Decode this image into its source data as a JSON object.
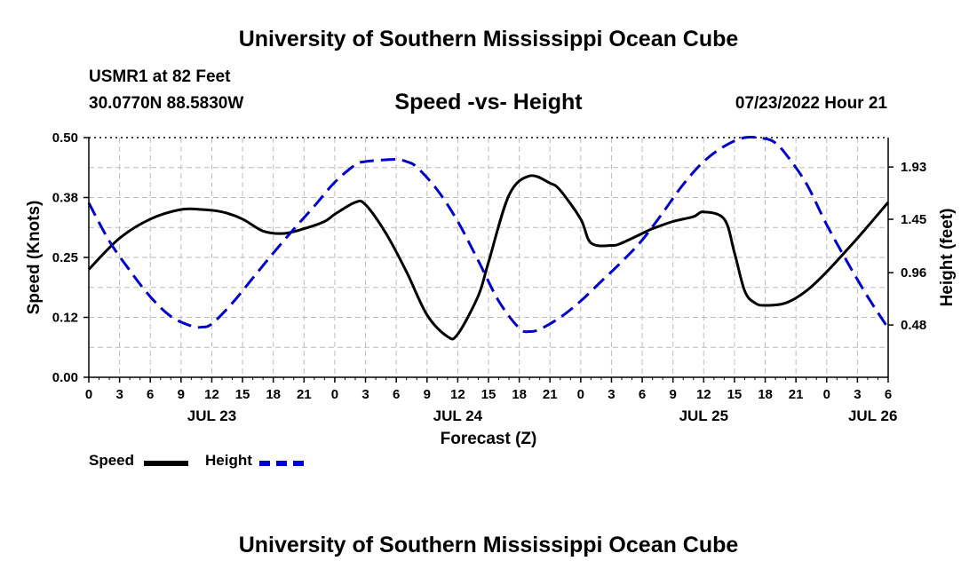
{
  "page": {
    "top_title": "University of Southern Mississippi Ocean Cube",
    "station": "USMR1 at 82 Feet",
    "location": "30.0770N  88.5830W",
    "chart_title": "Speed -vs- Height",
    "timestamp": "07/23/2022 Hour 21",
    "bottom_title": "University of Southern Mississippi Ocean Cube"
  },
  "colors": {
    "speed": "#000000",
    "height": "#0000cc",
    "grid": "#bbbbbb"
  },
  "chart_data": {
    "type": "line",
    "title": "Speed -vs- Height",
    "xlabel": "Forecast (Z)",
    "ylabel": "Speed (Knots)",
    "y2label": "Height (feet)",
    "x_unit": "hours since 07/23 00Z",
    "xlim": [
      0,
      78
    ],
    "ylim": [
      0,
      0.5
    ],
    "y2lim": [
      0,
      2.2
    ],
    "x_tick_labels": [
      "0",
      "3",
      "6",
      "9",
      "12",
      "15",
      "18",
      "21",
      "0",
      "3",
      "6",
      "9",
      "12",
      "15",
      "18",
      "21",
      "0",
      "3",
      "6",
      "9",
      "12",
      "15",
      "18",
      "21",
      "0",
      "3",
      "6"
    ],
    "date_labels": [
      {
        "label": "JUL 23",
        "hour": 12
      },
      {
        "label": "JUL 24",
        "hour": 36
      },
      {
        "label": "JUL 25",
        "hour": 60
      },
      {
        "label": "JUL 26",
        "hour": 76.5
      }
    ],
    "y_ticks": [
      "0.00",
      "0.12",
      "0.25",
      "0.38",
      "0.50"
    ],
    "y_tick_values": [
      0,
      0.125,
      0.25,
      0.375,
      0.5
    ],
    "y2_ticks": [
      "0.48",
      "0.96",
      "1.45",
      "1.93"
    ],
    "y2_tick_values": [
      0.48,
      0.96,
      1.45,
      1.93
    ],
    "series": [
      {
        "name": "Speed",
        "axis": "left",
        "x": [
          0,
          3,
          6,
          9,
          11,
          13,
          15,
          17,
          19,
          21,
          23,
          24,
          26,
          27,
          29,
          31,
          33,
          35,
          36,
          38,
          39,
          41,
          43,
          45,
          46,
          48,
          49,
          51,
          52,
          54,
          55,
          57,
          59,
          60,
          62,
          63,
          64,
          65,
          66,
          68,
          70,
          72,
          75,
          78
        ],
        "values": [
          0.225,
          0.29,
          0.33,
          0.35,
          0.35,
          0.345,
          0.33,
          0.305,
          0.3,
          0.31,
          0.325,
          0.34,
          0.365,
          0.36,
          0.3,
          0.22,
          0.13,
          0.085,
          0.09,
          0.17,
          0.24,
          0.38,
          0.42,
          0.405,
          0.39,
          0.33,
          0.28,
          0.275,
          0.28,
          0.3,
          0.31,
          0.325,
          0.335,
          0.345,
          0.33,
          0.26,
          0.18,
          0.155,
          0.15,
          0.155,
          0.18,
          0.22,
          0.29,
          0.365
        ]
      },
      {
        "name": "Height",
        "axis": "right",
        "x": [
          0,
          2,
          4,
          6,
          8,
          10,
          11,
          12,
          14,
          16,
          18,
          20,
          22,
          24,
          26,
          27,
          28,
          30,
          31,
          32,
          34,
          36,
          38,
          40,
          42,
          43,
          44,
          46,
          48,
          50,
          52,
          54,
          56,
          58,
          60,
          62,
          64,
          66,
          67,
          68,
          70,
          72,
          74,
          76,
          78
        ],
        "values": [
          1.6,
          1.25,
          0.98,
          0.74,
          0.56,
          0.47,
          0.46,
          0.49,
          0.68,
          0.91,
          1.14,
          1.36,
          1.57,
          1.79,
          1.95,
          1.98,
          1.99,
          2.0,
          1.98,
          1.93,
          1.72,
          1.43,
          1.07,
          0.7,
          0.45,
          0.42,
          0.44,
          0.55,
          0.7,
          0.88,
          1.06,
          1.26,
          1.51,
          1.77,
          1.98,
          2.12,
          2.2,
          2.19,
          2.15,
          2.05,
          1.78,
          1.4,
          1.06,
          0.74,
          0.45
        ]
      }
    ],
    "legend": [
      {
        "label": "Speed",
        "style": "solid"
      },
      {
        "label": "Height",
        "style": "dashed"
      }
    ]
  }
}
